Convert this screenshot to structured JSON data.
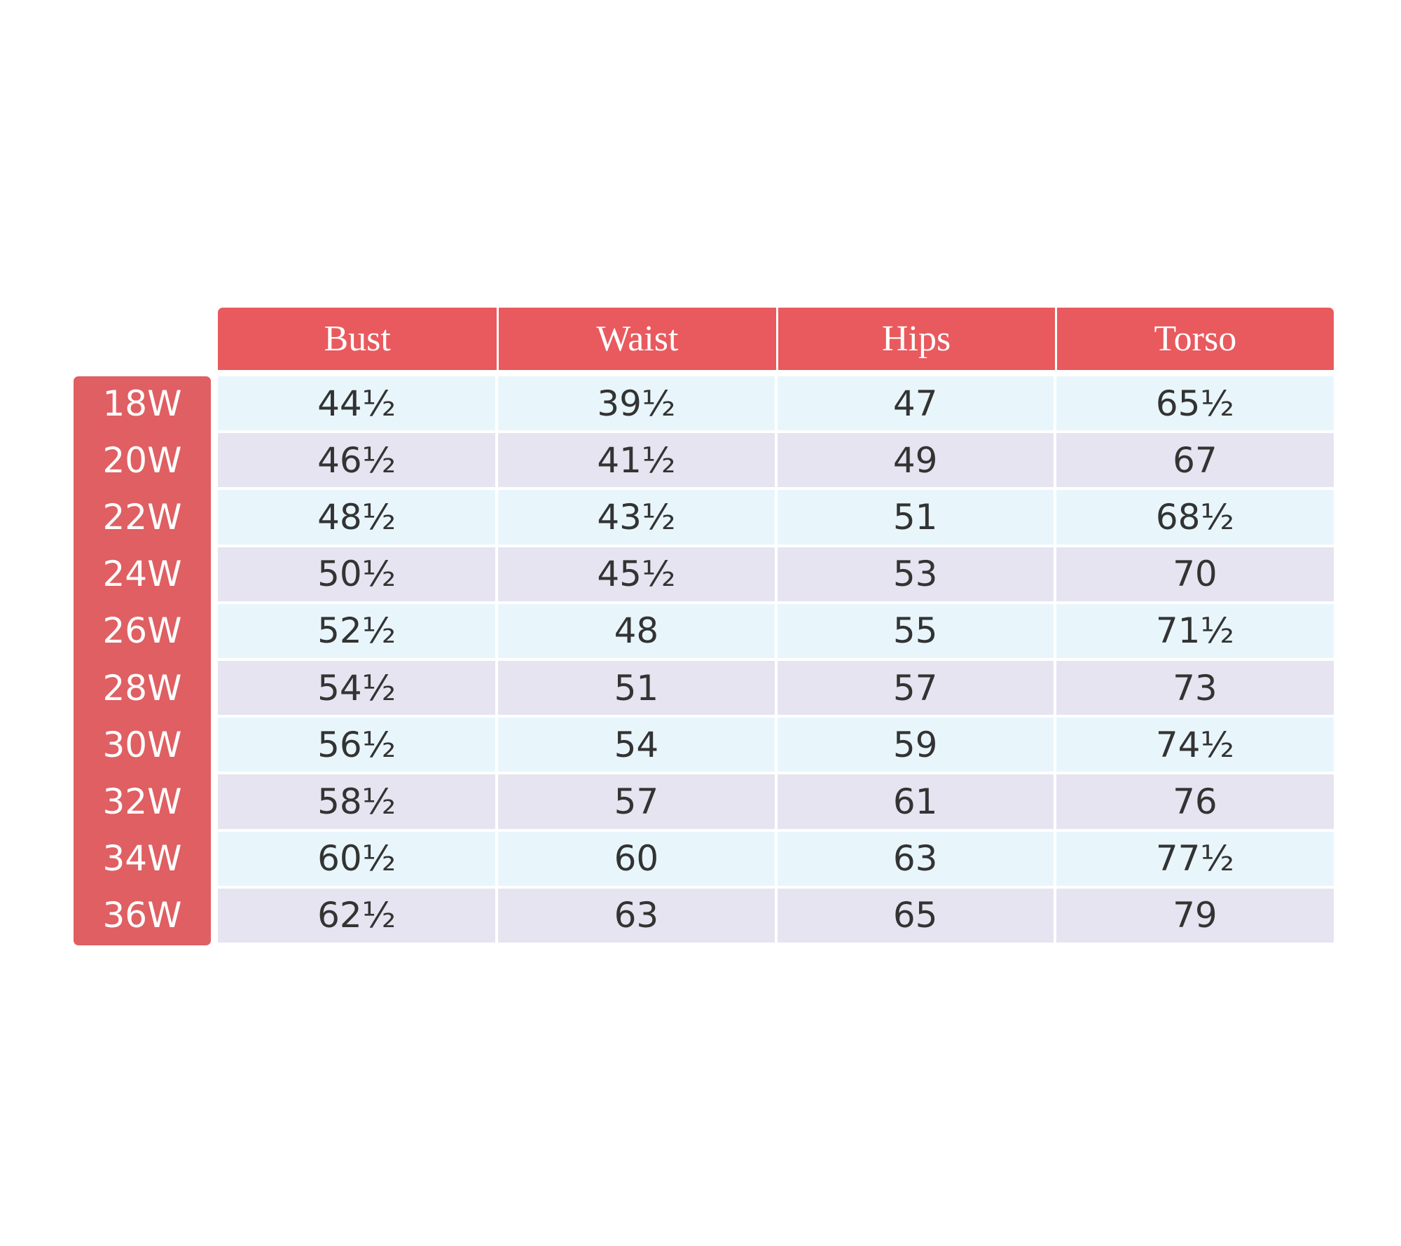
{
  "table": {
    "columns": [
      "Bust",
      "Waist",
      "Hips",
      "Torso"
    ],
    "rows": [
      [
        "18W",
        "44½",
        "39½",
        "47",
        "65½"
      ],
      [
        "20W",
        "46½",
        "41½",
        "49",
        "67"
      ],
      [
        "22W",
        "48½",
        "43½",
        "51",
        "68½"
      ],
      [
        "24W",
        "50½",
        "45½",
        "53",
        "70"
      ],
      [
        "26W",
        "52½",
        "48",
        "55",
        "71½"
      ],
      [
        "28W",
        "54½",
        "51",
        "57",
        "73"
      ],
      [
        "30W",
        "56½",
        "54",
        "59",
        "74½"
      ],
      [
        "32W",
        "58½",
        "57",
        "61",
        "76"
      ],
      [
        "34W",
        "60½",
        "60",
        "63",
        "77½"
      ],
      [
        "36W",
        "62½",
        "63",
        "65",
        "79"
      ]
    ]
  }
}
